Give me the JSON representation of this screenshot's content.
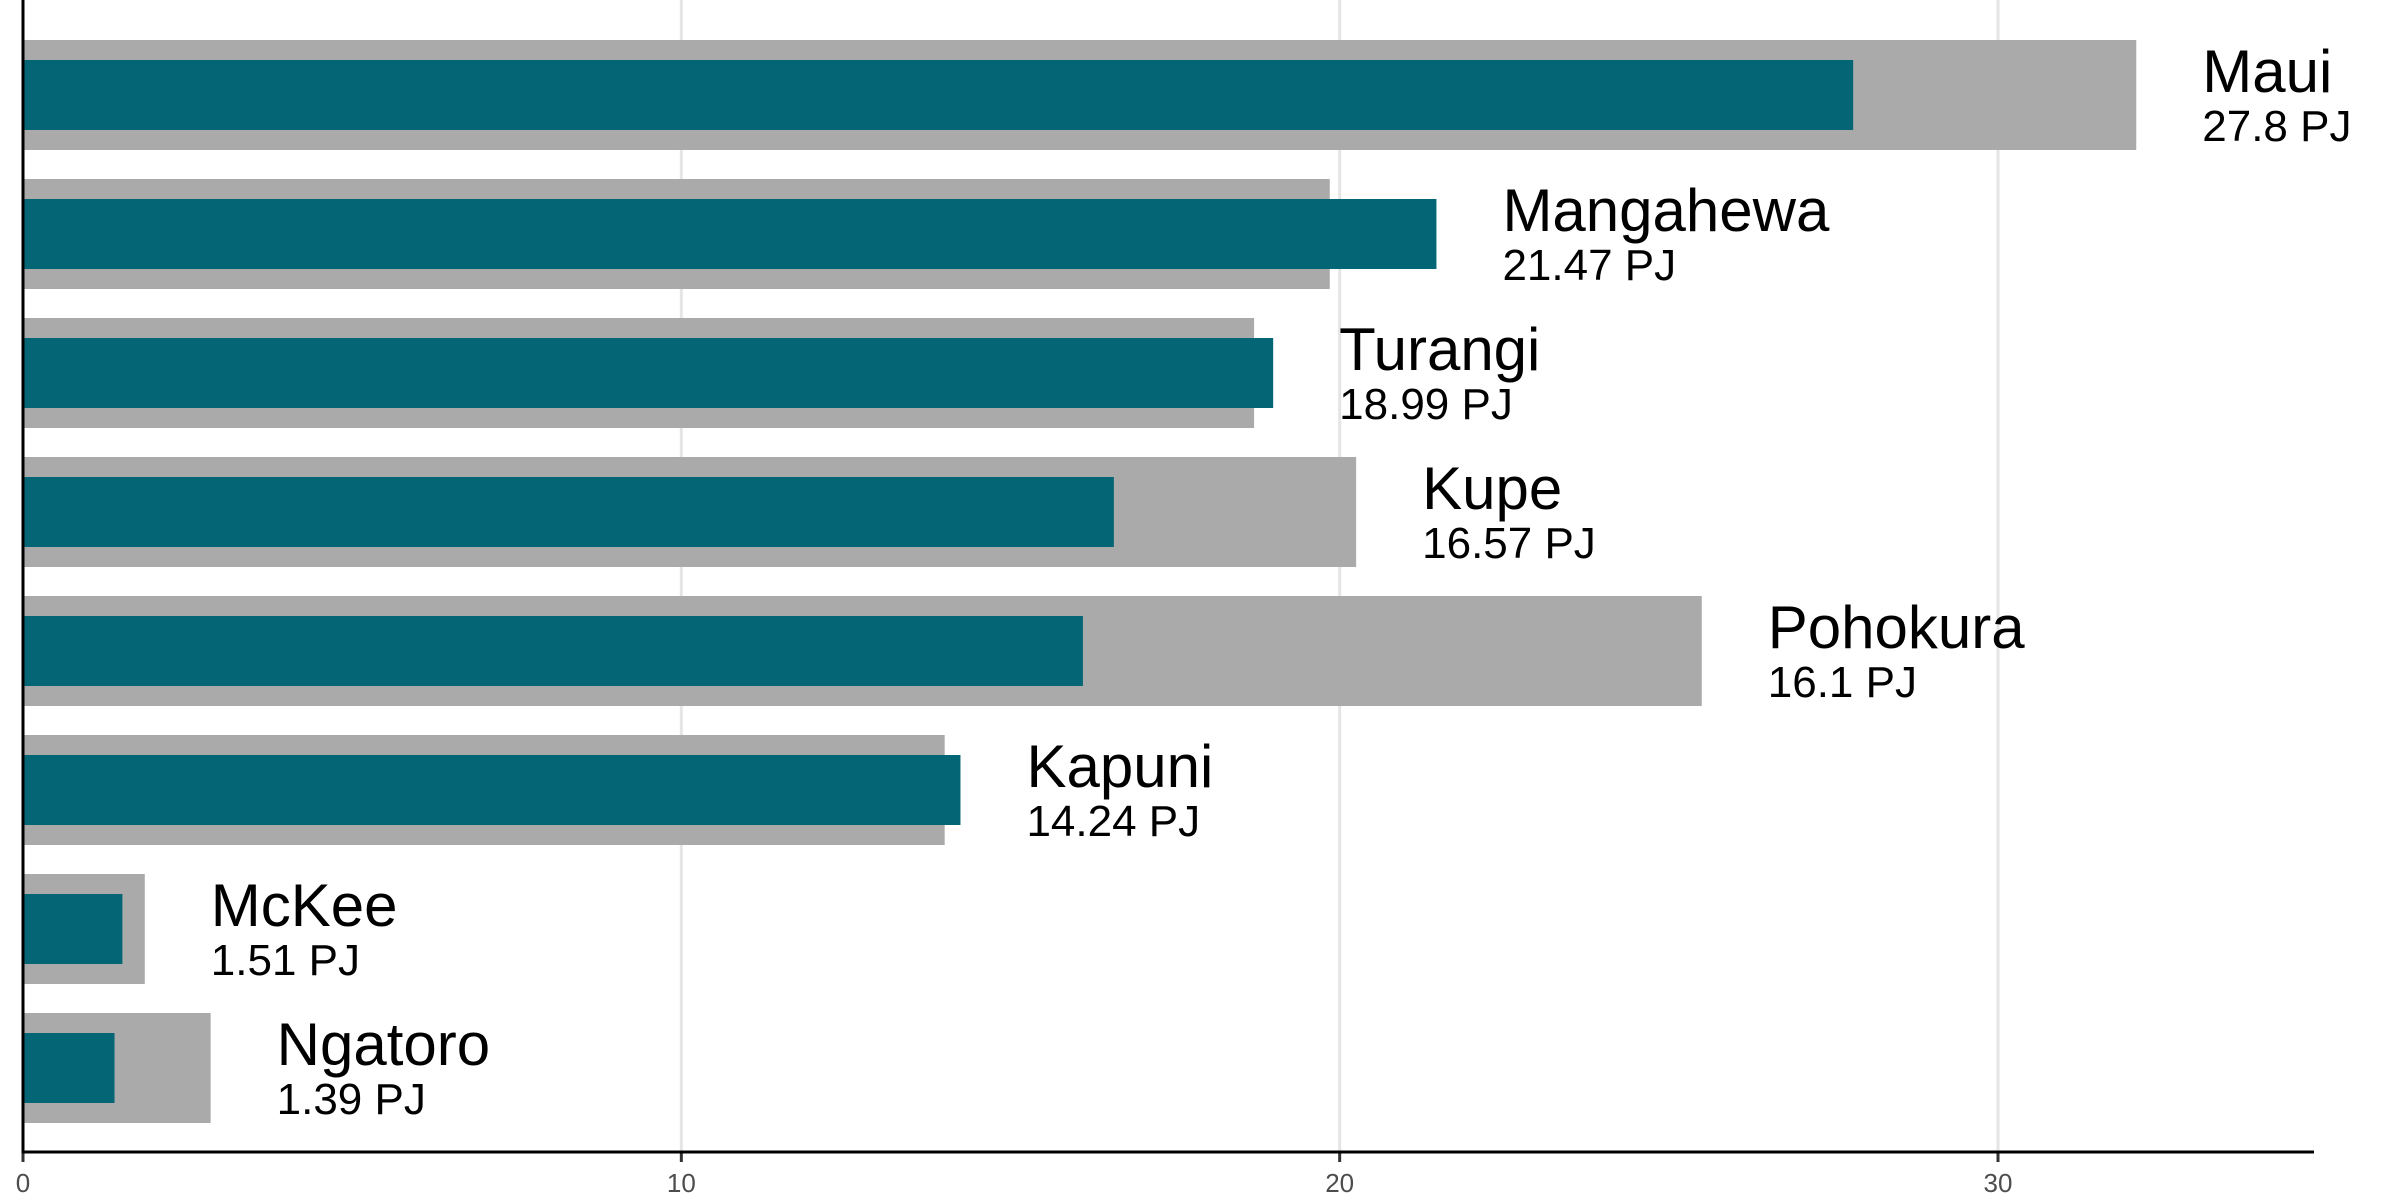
{
  "chart_data": {
    "type": "bar",
    "orientation": "horizontal",
    "categories": [
      "Maui",
      "Mangahewa",
      "Turangi",
      "Kupe",
      "Pohokura",
      "Kapuni",
      "McKee",
      "Ngatoro"
    ],
    "series": [
      {
        "values": [
          32.1,
          19.85,
          18.7,
          20.25,
          25.5,
          14.0,
          1.85,
          2.85
        ]
      },
      {
        "values": [
          27.8,
          21.47,
          18.99,
          16.57,
          16.1,
          14.24,
          1.51,
          1.39
        ]
      }
    ],
    "value_labels": [
      "27.8 PJ",
      "21.47 PJ",
      "18.99 PJ",
      "16.57 PJ",
      "16.1 PJ",
      "14.24 PJ",
      "1.51 PJ",
      "1.39 PJ"
    ],
    "x_ticks": [
      "0",
      "10",
      "20",
      "30"
    ],
    "xlim": [
      0,
      34.8
    ],
    "xlabel": "",
    "ylabel": "",
    "title": "",
    "grid": "vertical",
    "colors": {
      "background_bar": "#aaaaaa",
      "foreground_bar": "#046575",
      "grid": "#e5e5e5",
      "axis": "#000000"
    }
  }
}
